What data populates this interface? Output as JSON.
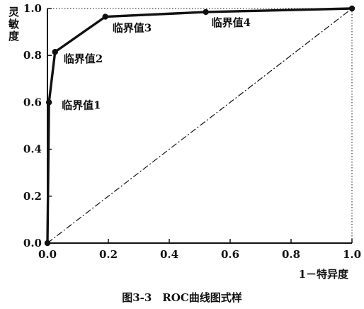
{
  "chart_data": {
    "type": "line",
    "caption": "图3-3　ROC曲线图式样",
    "xlabel": "1－特异度",
    "ylabel": "灵敏度",
    "xlim": [
      0,
      1
    ],
    "ylim": [
      0,
      1
    ],
    "x_ticks": [
      "0.0",
      "0.2",
      "0.4",
      "0.6",
      "0.8",
      "1.0"
    ],
    "y_ticks": [
      "0.0",
      "0.2",
      "0.4",
      "0.6",
      "0.8",
      "1.0"
    ],
    "grid": false,
    "series": [
      {
        "x": [
          0.0,
          0.005,
          0.025,
          0.19,
          0.52,
          1.0
        ],
        "y": [
          0.0,
          0.6,
          0.815,
          0.965,
          0.985,
          1.0
        ],
        "style": "solid",
        "markers": true
      },
      {
        "x": [
          0.0,
          1.0
        ],
        "y": [
          0.0,
          1.0
        ],
        "style": "dash-dot",
        "markers": false
      }
    ],
    "annotations": [
      {
        "text": "临界值1",
        "x": 0.005,
        "y": 0.6
      },
      {
        "text": "临界值2",
        "x": 0.025,
        "y": 0.815
      },
      {
        "text": "临界值3",
        "x": 0.19,
        "y": 0.965
      },
      {
        "text": "临界值4",
        "x": 0.52,
        "y": 0.985
      }
    ],
    "colors": {
      "ink": "#111111",
      "background": "#ffffff"
    }
  }
}
